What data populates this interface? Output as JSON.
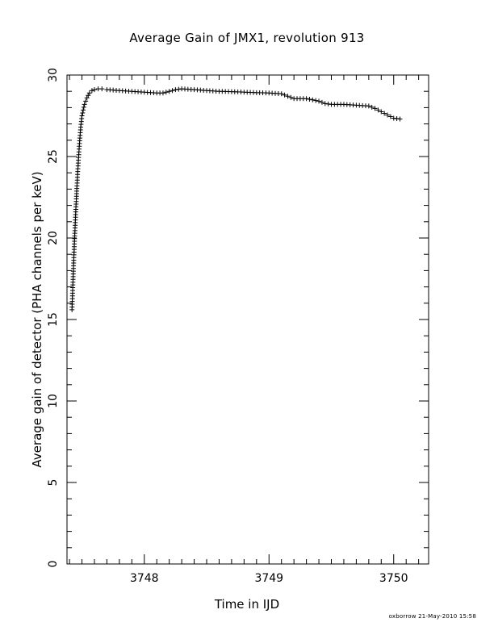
{
  "chart_data": {
    "type": "scatter",
    "title": "Average Gain of JMX1, revolution 913",
    "xlabel": "Time in IJD",
    "ylabel": "Average gain of detector (PHA channels per keV)",
    "xlim": [
      3747.38,
      3750.28
    ],
    "ylim": [
      0,
      30
    ],
    "x_ticks": [
      3748,
      3749,
      3750
    ],
    "y_ticks": [
      0,
      5,
      10,
      15,
      20,
      25,
      30
    ],
    "marker": "plus",
    "grid": false,
    "series": [
      {
        "x": [
          3747.42,
          3747.43,
          3747.44,
          3747.45,
          3747.46,
          3747.47,
          3747.48,
          3747.49,
          3747.5,
          3747.52,
          3747.54,
          3747.56,
          3747.58,
          3747.6,
          3747.63,
          3747.66,
          3747.7,
          3747.8,
          3747.9,
          3748.0,
          3748.1,
          3748.15,
          3748.2,
          3748.25,
          3748.3,
          3748.4,
          3748.5,
          3748.6,
          3748.7,
          3748.8,
          3748.9,
          3749.0,
          3749.1,
          3749.15,
          3749.2,
          3749.25,
          3749.3,
          3749.4,
          3749.45,
          3749.5,
          3749.55,
          3749.6,
          3749.7,
          3749.8,
          3749.85,
          3749.9,
          3749.95,
          3750.0,
          3750.05
        ],
        "y": [
          15.6,
          17.8,
          19.8,
          21.6,
          23.2,
          24.6,
          25.8,
          26.8,
          27.5,
          28.2,
          28.6,
          28.9,
          29.05,
          29.1,
          29.15,
          29.15,
          29.1,
          29.05,
          29.0,
          28.95,
          28.9,
          28.9,
          29.0,
          29.1,
          29.15,
          29.1,
          29.05,
          29.0,
          28.98,
          28.95,
          28.92,
          28.9,
          28.85,
          28.7,
          28.55,
          28.55,
          28.55,
          28.4,
          28.25,
          28.2,
          28.2,
          28.2,
          28.15,
          28.1,
          27.95,
          27.75,
          27.55,
          27.35,
          27.3
        ]
      }
    ]
  },
  "footer": "oxborrow 21-May-2010 15:58"
}
